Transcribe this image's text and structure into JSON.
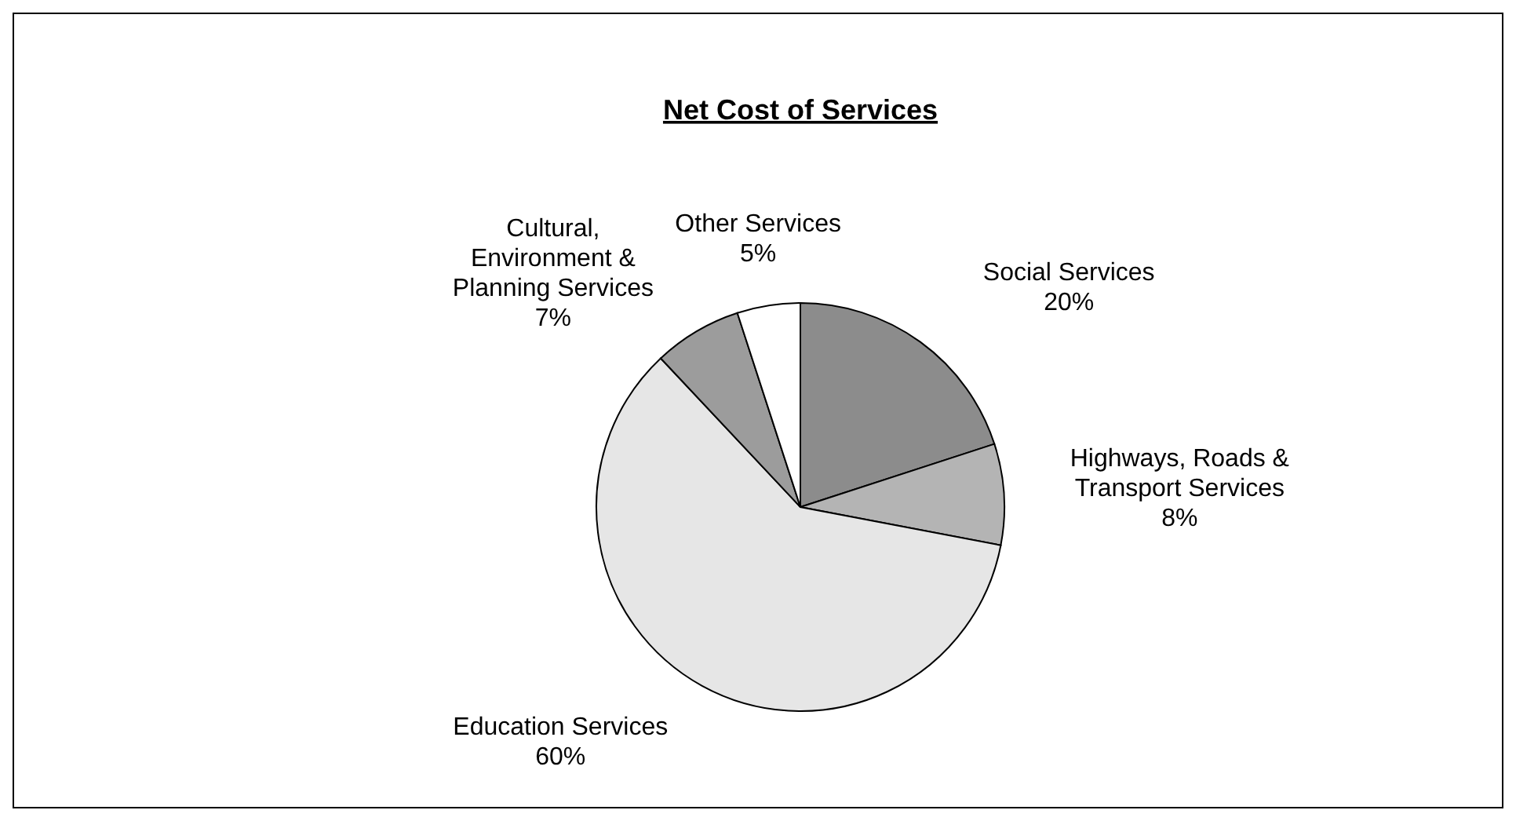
{
  "chart_data": {
    "type": "pie",
    "title": "Net Cost of Services",
    "categories": [
      "Social Services",
      "Highways, Roads & Transport Services",
      "Education Services",
      "Cultural, Environment & Planning Services",
      "Other Services"
    ],
    "values": [
      20,
      8,
      60,
      7,
      5
    ],
    "colors": [
      "#8c8c8c",
      "#b4b4b4",
      "#e6e6e6",
      "#9c9c9c",
      "#ffffff"
    ],
    "value_labels": [
      "20%",
      "8%",
      "60%",
      "7%",
      "5%"
    ]
  }
}
